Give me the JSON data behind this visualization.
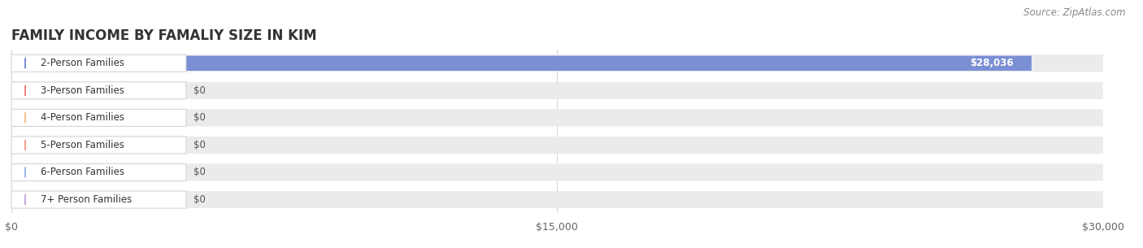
{
  "title": "FAMILY INCOME BY FAMALIY SIZE IN KIM",
  "source": "Source: ZipAtlas.com",
  "categories": [
    "2-Person Families",
    "3-Person Families",
    "4-Person Families",
    "5-Person Families",
    "6-Person Families",
    "7+ Person Families"
  ],
  "values": [
    28036,
    0,
    0,
    0,
    0,
    0
  ],
  "bar_colors": [
    "#7b8fd4",
    "#f08080",
    "#f5c18a",
    "#f4a090",
    "#9db8e8",
    "#c4a8d8"
  ],
  "xlim": [
    0,
    30000
  ],
  "xticks": [
    0,
    15000,
    30000
  ],
  "xtick_labels": [
    "$0",
    "$15,000",
    "$30,000"
  ],
  "value_labels": [
    "$28,036",
    "$0",
    "$0",
    "$0",
    "$0",
    "$0"
  ],
  "bg_color": "#ffffff",
  "row_bg_color": "#ebebeb",
  "title_fontsize": 12,
  "source_fontsize": 8.5,
  "tick_fontsize": 9,
  "label_fontsize": 8.5,
  "value_fontsize": 8.5
}
